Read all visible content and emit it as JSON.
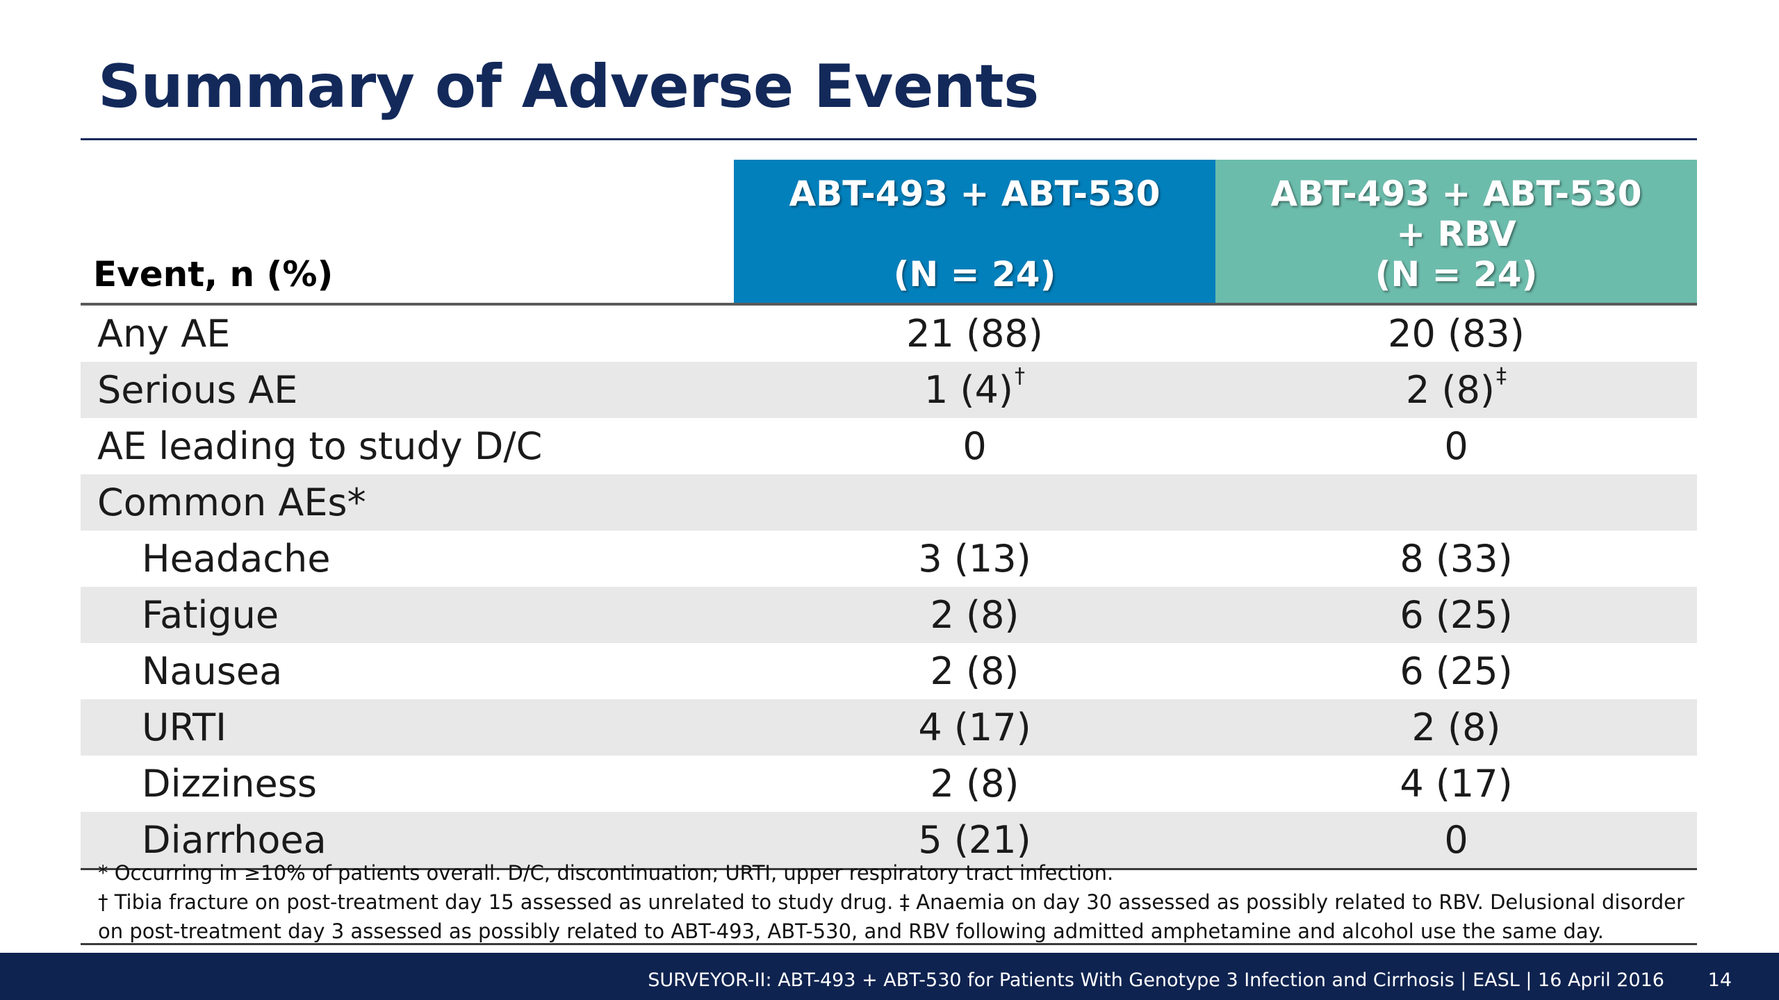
{
  "slide": {
    "title": "Summary of Adverse Events",
    "page_number": "14",
    "footer": "SURVEYOR-II: ABT-493 + ABT-530 for Patients With Genotype 3 Infection and Cirrhosis  | EASL | 16 April 2016"
  },
  "table": {
    "header_event": "Event, n (%)",
    "arm1": {
      "line1": "ABT-493 + ABT-530",
      "line2": "",
      "line3": "(N = 24)"
    },
    "arm2": {
      "line1": "ABT-493 + ABT-530",
      "line2": "+ RBV",
      "line3": "(N = 24)"
    },
    "rows": [
      {
        "event": "Any AE",
        "a1": "21 (88)",
        "a1_mark": "",
        "a2": "20 (83)",
        "a2_mark": ""
      },
      {
        "event": "Serious AE",
        "a1": "1 (4)",
        "a1_mark": "†",
        "a2": "2 (8)",
        "a2_mark": "‡"
      },
      {
        "event": "AE leading to study D/C",
        "a1": "0",
        "a1_mark": "",
        "a2": "0",
        "a2_mark": ""
      },
      {
        "event": "Common AEs*",
        "a1": "",
        "a1_mark": "",
        "a2": "",
        "a2_mark": ""
      },
      {
        "event": "Headache",
        "a1": "3 (13)",
        "a1_mark": "",
        "a2": "8 (33)",
        "a2_mark": ""
      },
      {
        "event": "Fatigue",
        "a1": "2 (8)",
        "a1_mark": "",
        "a2": "6 (25)",
        "a2_mark": ""
      },
      {
        "event": "Nausea",
        "a1": "2 (8)",
        "a1_mark": "",
        "a2": "6 (25)",
        "a2_mark": ""
      },
      {
        "event": "URTI",
        "a1": "4 (17)",
        "a1_mark": "",
        "a2": "2 (8)",
        "a2_mark": ""
      },
      {
        "event": "Dizziness",
        "a1": "2 (8)",
        "a1_mark": "",
        "a2": "4 (17)",
        "a2_mark": ""
      },
      {
        "event": "Diarrhoea",
        "a1": "5 (21)",
        "a1_mark": "",
        "a2": "0",
        "a2_mark": ""
      }
    ]
  },
  "footnotes": {
    "line1": "* Occurring in ≥10% of patients overall. D/C, discontinuation; URTI, upper respiratory tract infection.",
    "line2": "† Tibia fracture on post-treatment day 15 assessed as unrelated to study drug. ‡ Anaemia on day 30 assessed as possibly related to RBV. Delusional disorder on post-treatment day 3 assessed as possibly related to ABT-493, ABT-530, and RBV following admitted amphetamine and alcohol use the same day."
  }
}
